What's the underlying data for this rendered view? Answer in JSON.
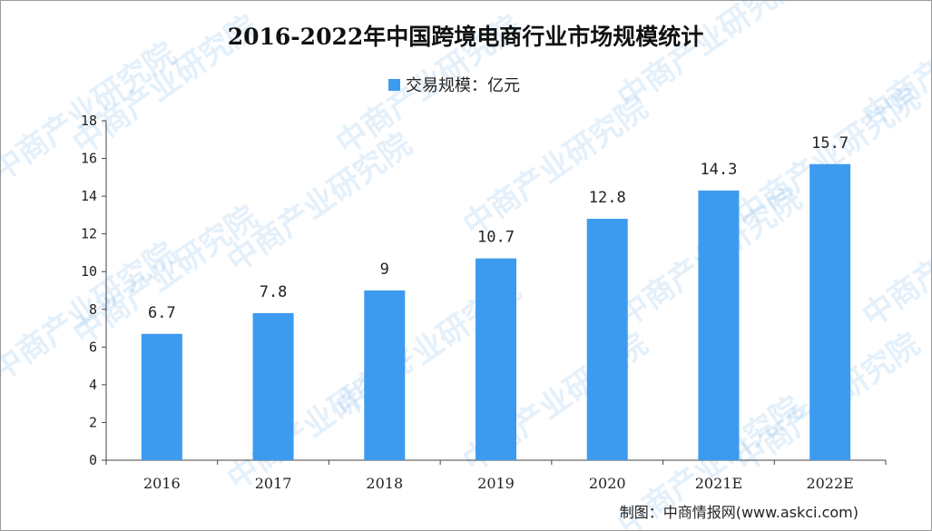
{
  "chart_data": {
    "type": "bar",
    "title": "2016-2022年中国跨境电商行业市场规模统计",
    "legend": {
      "label": "交易规模：亿元",
      "position": "top-center"
    },
    "categories": [
      "2016",
      "2017",
      "2018",
      "2019",
      "2020",
      "2021E",
      "2022E"
    ],
    "series": [
      {
        "name": "交易规模：亿元",
        "values": [
          6.7,
          7.8,
          9,
          10.7,
          12.8,
          14.3,
          15.7
        ]
      }
    ],
    "data_labels": [
      "6.7",
      "7.8",
      "9",
      "10.7",
      "12.8",
      "14.3",
      "15.7"
    ],
    "ylim": [
      0,
      18
    ],
    "yticks": [
      0,
      2,
      4,
      6,
      8,
      10,
      12,
      14,
      16,
      18
    ],
    "xlabel": "",
    "ylabel": "",
    "grid": false,
    "colors": {
      "bar": "#3d9bef",
      "axis": "#444444"
    }
  },
  "source": "制图：中商情报网(www.askci.com)",
  "watermark": "中商产业研究院"
}
